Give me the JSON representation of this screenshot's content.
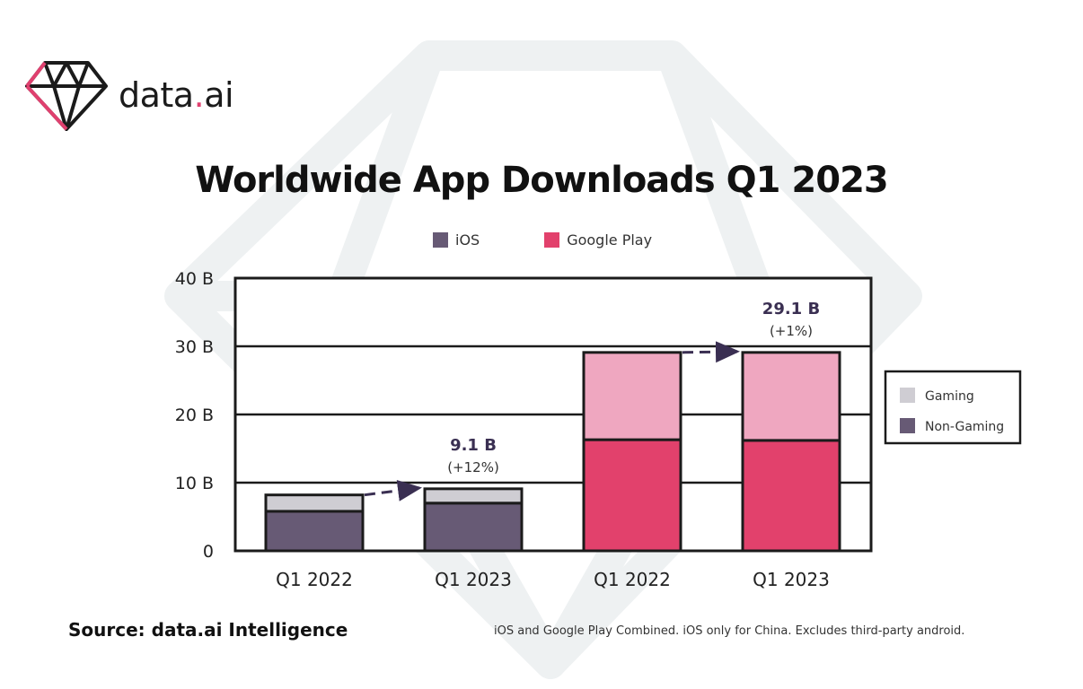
{
  "brand": {
    "name_prefix": "data",
    "name_dot": ".",
    "name_suffix": "ai"
  },
  "title": "Worldwide App Downloads Q1 2023",
  "legend_top": [
    {
      "label": "iOS",
      "color": "#675a75"
    },
    {
      "label": "Google Play",
      "color": "#e2416c"
    }
  ],
  "legend_side": [
    {
      "label": "Gaming",
      "color": "#cfcdd3"
    },
    {
      "label": "Non-Gaming",
      "color": "#675a75"
    }
  ],
  "source": "Source: data.ai Intelligence",
  "note": "iOS and Google Play Combined. iOS only for China. Excludes third-party android.",
  "chart_data": {
    "type": "bar",
    "stacked": true,
    "categories": [
      "Q1 2022",
      "Q1 2023",
      "Q1 2022",
      "Q1 2023"
    ],
    "yticks": [
      "0",
      "10 B",
      "20 B",
      "30 B",
      "40 B"
    ],
    "ylim": [
      0,
      40
    ],
    "grid": true,
    "legend_position": "right",
    "bars": [
      {
        "store": "iOS",
        "non_gaming": 5.8,
        "gaming": 2.4,
        "total": 8.2,
        "colors": {
          "non_gaming": "#675a75",
          "gaming": "#cfcdd3"
        }
      },
      {
        "store": "iOS",
        "non_gaming": 7.0,
        "gaming": 2.1,
        "total": 9.1,
        "colors": {
          "non_gaming": "#675a75",
          "gaming": "#cfcdd3"
        },
        "label": "9.1 B",
        "change": "(+12%)"
      },
      {
        "store": "Google Play",
        "non_gaming": 16.3,
        "gaming": 12.8,
        "total": 29.1,
        "colors": {
          "non_gaming": "#e2416c",
          "gaming": "#efa7c0"
        }
      },
      {
        "store": "Google Play",
        "non_gaming": 16.2,
        "gaming": 12.9,
        "total": 29.1,
        "colors": {
          "non_gaming": "#e2416c",
          "gaming": "#efa7c0"
        },
        "label": "29.1 B",
        "change": "(+1%)"
      }
    ]
  }
}
